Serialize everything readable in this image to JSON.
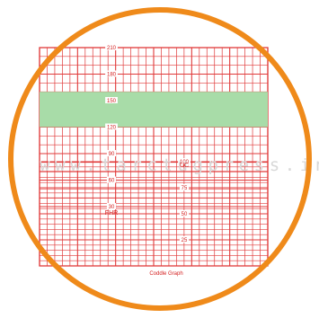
{
  "chart_data": {
    "type": "table",
    "title": "",
    "caption": "Coddle Graph",
    "watermark": "www.tarctugpress.in",
    "fhr_axis": {
      "label": "FHR",
      "ticks": [
        {
          "value": 210,
          "label": "210"
        },
        {
          "value": 180,
          "label": "180"
        },
        {
          "value": 150,
          "label": "150"
        },
        {
          "value": 120,
          "label": "120"
        },
        {
          "value": 90,
          "label": "90"
        },
        {
          "value": 60,
          "label": "60"
        },
        {
          "value": 30,
          "label": "30"
        }
      ],
      "range": [
        30,
        210
      ]
    },
    "uc_axis": {
      "label": "UC",
      "ticks": [
        {
          "value": 100,
          "label": "100"
        },
        {
          "value": 75,
          "label": "75"
        },
        {
          "value": 50,
          "label": "50"
        },
        {
          "value": 25,
          "label": "25"
        }
      ],
      "range": [
        0,
        100
      ]
    },
    "normal_band": {
      "from": 120,
      "to": 160,
      "color": "#a8dca8"
    },
    "grid": true,
    "colors": {
      "grid": "#e03a3a",
      "ring": "#ef8a1a",
      "text": "#d42020"
    }
  }
}
